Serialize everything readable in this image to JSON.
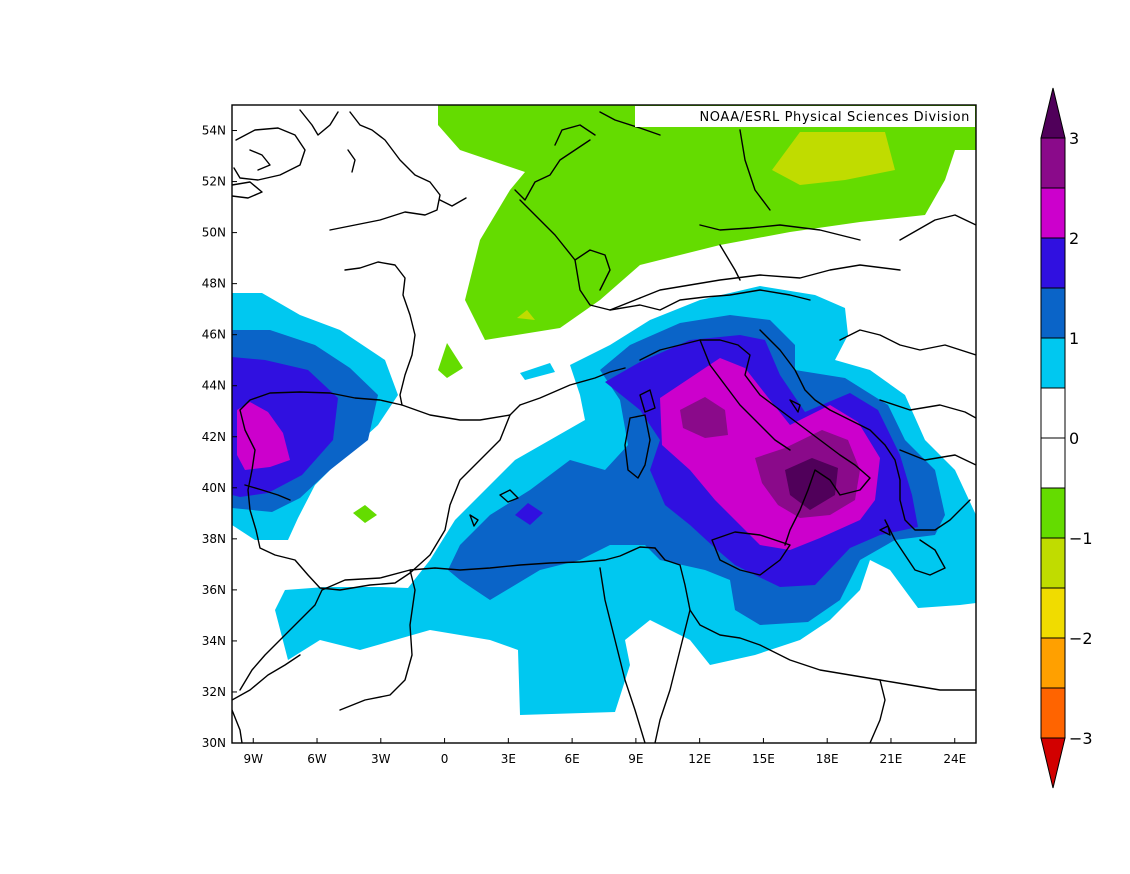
{
  "credit": "NOAA/ESRL Physical Sciences Division",
  "axes": {
    "x_ticks": [
      "9W",
      "6W",
      "3W",
      "0",
      "3E",
      "6E",
      "9E",
      "12E",
      "15E",
      "18E",
      "21E",
      "24E"
    ],
    "y_ticks": [
      "54N",
      "52N",
      "50N",
      "48N",
      "46N",
      "44N",
      "42N",
      "40N",
      "38N",
      "36N",
      "34N",
      "32N",
      "30N"
    ]
  },
  "colorbar": {
    "labels": [
      "3",
      "2",
      "1",
      "0",
      "−1",
      "−2",
      "−3"
    ],
    "colors_top_to_bottom": [
      "#8a0a8a",
      "#cc00cc",
      "#3010e0",
      "#0a64c8",
      "#00c8f0",
      "#ffffff",
      "#ffffff",
      "#64dc00",
      "#c0dc00",
      "#f0dc00",
      "#ffa000",
      "#ff6400"
    ],
    "arrow_top_color": "#50005a",
    "arrow_bottom_color": "#d20000"
  },
  "chart_data": {
    "type": "heatmap",
    "lon_range": [
      -10,
      25
    ],
    "lat_range": [
      30,
      55
    ],
    "levels": [
      -3,
      -2.5,
      -2,
      -1.5,
      -1,
      -0.5,
      0,
      0.5,
      1,
      1.5,
      2,
      2.5,
      3
    ],
    "fill_colors": {
      "pos_0.5": "#00c8f0",
      "pos_1.0": "#0a64c8",
      "pos_1.5": "#3010e0",
      "pos_2.0": "#cc00cc",
      "pos_2.5": "#8a0a8a",
      "pos_3.0": "#50005a",
      "neg_0.5": "#64dc00",
      "neg_1.0": "#c0dc00"
    }
  }
}
